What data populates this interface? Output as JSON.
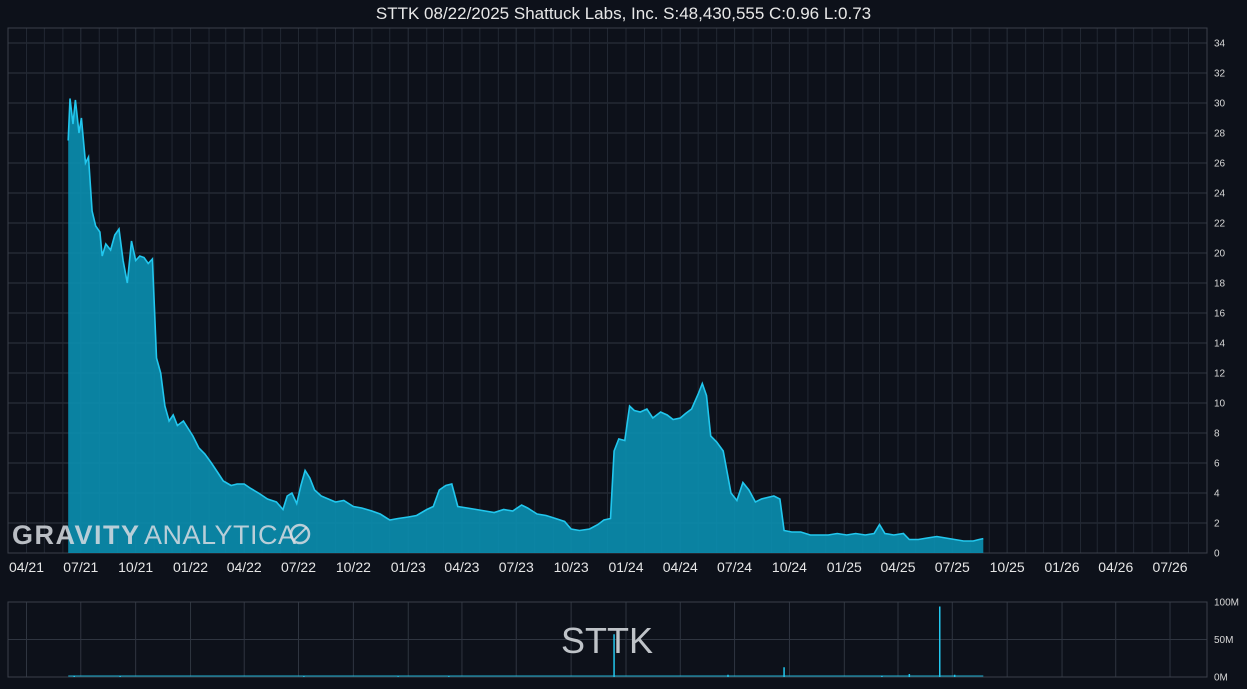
{
  "chart_data": [
    {
      "type": "area",
      "title": "STTK 08/22/2025 Shattuck Labs, Inc. S:48,430,555 C:0.96 L:0.73",
      "ylim": [
        0,
        35
      ],
      "yticks": [
        0,
        2,
        4,
        6,
        8,
        10,
        12,
        14,
        16,
        18,
        20,
        22,
        24,
        26,
        28,
        30,
        32,
        34
      ],
      "x_tick_labels": [
        "04/21",
        "07/21",
        "10/21",
        "01/22",
        "04/22",
        "07/22",
        "10/22",
        "01/23",
        "04/23",
        "07/23",
        "10/23",
        "01/24",
        "04/24",
        "07/24",
        "10/24",
        "01/25",
        "04/25",
        "07/25",
        "10/25",
        "01/26",
        "04/26",
        "07/26"
      ],
      "xlim": [
        "2021-03-01",
        "2026-09-01"
      ],
      "grid": true,
      "color": "#22c7ee",
      "fill": "#0a8fb0",
      "series": [
        {
          "points": [
            [
              "2021-06-10",
              27.5
            ],
            [
              "2021-06-13",
              30.3
            ],
            [
              "2021-06-18",
              28.6
            ],
            [
              "2021-06-22",
              30.2
            ],
            [
              "2021-06-28",
              28.0
            ],
            [
              "2021-07-02",
              29.0
            ],
            [
              "2021-07-09",
              26.0
            ],
            [
              "2021-07-14",
              26.4
            ],
            [
              "2021-07-20",
              22.8
            ],
            [
              "2021-07-26",
              21.8
            ],
            [
              "2021-08-02",
              21.4
            ],
            [
              "2021-08-06",
              19.8
            ],
            [
              "2021-08-12",
              20.6
            ],
            [
              "2021-08-20",
              20.2
            ],
            [
              "2021-08-27",
              21.2
            ],
            [
              "2021-09-03",
              21.6
            ],
            [
              "2021-09-10",
              19.5
            ],
            [
              "2021-09-17",
              18.0
            ],
            [
              "2021-09-24",
              20.8
            ],
            [
              "2021-10-01",
              19.5
            ],
            [
              "2021-10-08",
              19.8
            ],
            [
              "2021-10-15",
              19.7
            ],
            [
              "2021-10-22",
              19.3
            ],
            [
              "2021-10-29",
              19.6
            ],
            [
              "2021-11-05",
              13.0
            ],
            [
              "2021-11-12",
              12.0
            ],
            [
              "2021-11-19",
              9.8
            ],
            [
              "2021-11-26",
              8.8
            ],
            [
              "2021-12-03",
              9.2
            ],
            [
              "2021-12-10",
              8.5
            ],
            [
              "2021-12-20",
              8.8
            ],
            [
              "2022-01-05",
              7.8
            ],
            [
              "2022-01-15",
              7.0
            ],
            [
              "2022-01-25",
              6.6
            ],
            [
              "2022-02-05",
              6.0
            ],
            [
              "2022-02-15",
              5.4
            ],
            [
              "2022-02-25",
              4.8
            ],
            [
              "2022-03-10",
              4.5
            ],
            [
              "2022-03-20",
              4.6
            ],
            [
              "2022-04-01",
              4.6
            ],
            [
              "2022-04-12",
              4.3
            ],
            [
              "2022-04-25",
              4.0
            ],
            [
              "2022-05-10",
              3.6
            ],
            [
              "2022-05-25",
              3.4
            ],
            [
              "2022-06-05",
              2.9
            ],
            [
              "2022-06-12",
              3.8
            ],
            [
              "2022-06-20",
              4.0
            ],
            [
              "2022-06-28",
              3.3
            ],
            [
              "2022-07-05",
              4.5
            ],
            [
              "2022-07-12",
              5.5
            ],
            [
              "2022-07-20",
              5.0
            ],
            [
              "2022-07-28",
              4.2
            ],
            [
              "2022-08-08",
              3.8
            ],
            [
              "2022-08-20",
              3.6
            ],
            [
              "2022-09-01",
              3.4
            ],
            [
              "2022-09-15",
              3.5
            ],
            [
              "2022-10-01",
              3.1
            ],
            [
              "2022-10-15",
              3.0
            ],
            [
              "2022-11-01",
              2.8
            ],
            [
              "2022-11-15",
              2.6
            ],
            [
              "2022-12-01",
              2.2
            ],
            [
              "2022-12-15",
              2.3
            ],
            [
              "2023-01-01",
              2.4
            ],
            [
              "2023-01-15",
              2.5
            ],
            [
              "2023-02-01",
              2.9
            ],
            [
              "2023-02-12",
              3.1
            ],
            [
              "2023-02-22",
              4.2
            ],
            [
              "2023-03-05",
              4.5
            ],
            [
              "2023-03-15",
              4.6
            ],
            [
              "2023-03-25",
              3.1
            ],
            [
              "2023-04-10",
              3.0
            ],
            [
              "2023-04-25",
              2.9
            ],
            [
              "2023-05-10",
              2.8
            ],
            [
              "2023-05-25",
              2.7
            ],
            [
              "2023-06-10",
              2.9
            ],
            [
              "2023-06-25",
              2.8
            ],
            [
              "2023-07-10",
              3.2
            ],
            [
              "2023-07-20",
              3.0
            ],
            [
              "2023-08-05",
              2.6
            ],
            [
              "2023-08-20",
              2.5
            ],
            [
              "2023-09-05",
              2.3
            ],
            [
              "2023-09-20",
              2.1
            ],
            [
              "2023-10-01",
              1.6
            ],
            [
              "2023-10-15",
              1.5
            ],
            [
              "2023-11-01",
              1.6
            ],
            [
              "2023-11-15",
              1.9
            ],
            [
              "2023-11-25",
              2.2
            ],
            [
              "2023-12-06",
              2.3
            ],
            [
              "2023-12-12",
              6.8
            ],
            [
              "2023-12-20",
              7.6
            ],
            [
              "2023-12-30",
              7.5
            ],
            [
              "2024-01-07",
              9.8
            ],
            [
              "2024-01-15",
              9.5
            ],
            [
              "2024-01-25",
              9.4
            ],
            [
              "2024-02-05",
              9.6
            ],
            [
              "2024-02-15",
              9.0
            ],
            [
              "2024-02-28",
              9.4
            ],
            [
              "2024-03-10",
              9.2
            ],
            [
              "2024-03-20",
              8.9
            ],
            [
              "2024-04-01",
              9.0
            ],
            [
              "2024-04-10",
              9.3
            ],
            [
              "2024-04-20",
              9.6
            ],
            [
              "2024-05-01",
              10.6
            ],
            [
              "2024-05-08",
              11.3
            ],
            [
              "2024-05-15",
              10.5
            ],
            [
              "2024-05-22",
              7.8
            ],
            [
              "2024-06-01",
              7.4
            ],
            [
              "2024-06-12",
              6.8
            ],
            [
              "2024-06-25",
              4.0
            ],
            [
              "2024-07-05",
              3.5
            ],
            [
              "2024-07-15",
              4.7
            ],
            [
              "2024-07-25",
              4.2
            ],
            [
              "2024-08-05",
              3.4
            ],
            [
              "2024-08-15",
              3.6
            ],
            [
              "2024-08-25",
              3.7
            ],
            [
              "2024-09-05",
              3.8
            ],
            [
              "2024-09-15",
              3.6
            ],
            [
              "2024-09-22",
              1.5
            ],
            [
              "2024-10-05",
              1.4
            ],
            [
              "2024-10-20",
              1.4
            ],
            [
              "2024-11-05",
              1.2
            ],
            [
              "2024-11-20",
              1.2
            ],
            [
              "2024-12-05",
              1.2
            ],
            [
              "2024-12-20",
              1.3
            ],
            [
              "2025-01-05",
              1.2
            ],
            [
              "2025-01-20",
              1.3
            ],
            [
              "2025-02-05",
              1.2
            ],
            [
              "2025-02-20",
              1.3
            ],
            [
              "2025-03-01",
              1.9
            ],
            [
              "2025-03-10",
              1.3
            ],
            [
              "2025-03-25",
              1.2
            ],
            [
              "2025-04-10",
              1.3
            ],
            [
              "2025-04-20",
              0.9
            ],
            [
              "2025-05-05",
              0.9
            ],
            [
              "2025-05-20",
              1.0
            ],
            [
              "2025-06-05",
              1.1
            ],
            [
              "2025-06-20",
              1.0
            ],
            [
              "2025-07-05",
              0.9
            ],
            [
              "2025-07-20",
              0.8
            ],
            [
              "2025-08-05",
              0.8
            ],
            [
              "2025-08-15",
              0.9
            ],
            [
              "2025-08-22",
              0.96
            ]
          ]
        }
      ]
    },
    {
      "type": "bar",
      "title": "",
      "label": "STTK",
      "ylim": [
        0,
        100
      ],
      "ytick_labels": [
        "100M",
        "50M",
        "0M"
      ],
      "color": "#22c7ee",
      "spikes": [
        [
          "2021-06-20",
          1.5
        ],
        [
          "2021-09-05",
          1.2
        ],
        [
          "2022-07-10",
          1.0
        ],
        [
          "2022-12-15",
          0.8
        ],
        [
          "2023-03-10",
          1.0
        ],
        [
          "2023-12-12",
          57
        ],
        [
          "2024-06-20",
          3
        ],
        [
          "2024-09-22",
          13
        ],
        [
          "2025-03-05",
          1.5
        ],
        [
          "2025-04-20",
          4
        ],
        [
          "2025-06-10",
          94
        ],
        [
          "2025-07-05",
          3
        ]
      ]
    }
  ],
  "watermark": "GRAVITYANALYTICA"
}
